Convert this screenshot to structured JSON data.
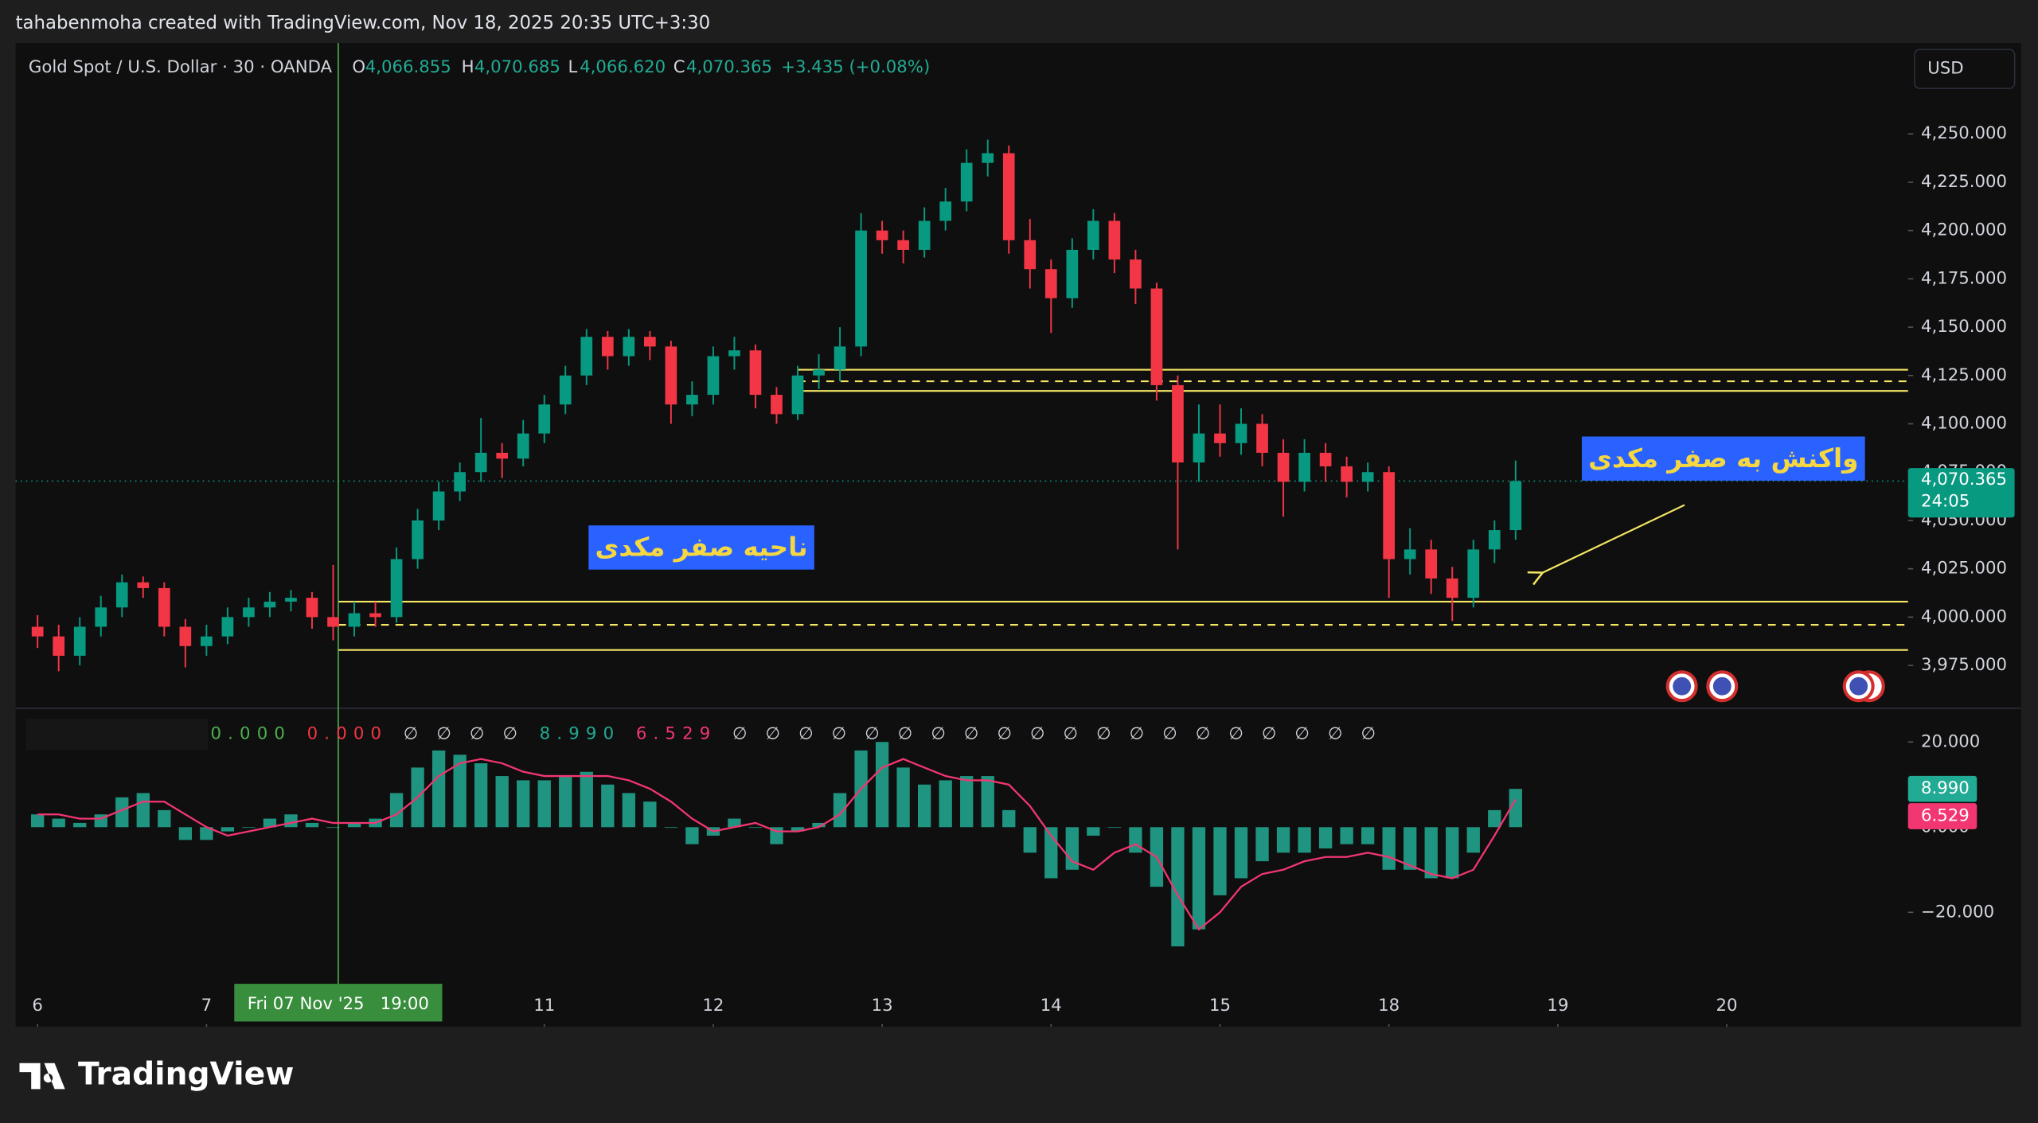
{
  "page": {
    "attribution": "tahabenmoha created with TradingView.com, Nov 18, 2025 20:35 UTC+3:30",
    "brand": "TradingView",
    "currency": "USD"
  },
  "chart_data": [
    {
      "type": "candlestick",
      "title": "Gold Spot / U.S. Dollar · 30 · OANDA",
      "quote": {
        "labels": [
          "O",
          "H",
          "L",
          "C"
        ],
        "values": [
          4066.855,
          4070.685,
          4066.62,
          4070.365
        ],
        "value_labels": [
          "4,066.855",
          "4,070.685",
          "4,066.620",
          "4,070.365"
        ],
        "change": "+3.435 (+0.08%)"
      },
      "up_color": "#089981",
      "down_color": "#f23645",
      "x": [
        0,
        0.125,
        0.25,
        0.375,
        0.5,
        0.625,
        0.75,
        0.875,
        1,
        1.125,
        1.25,
        1.375,
        1.5,
        1.625,
        1.75,
        1.875,
        2,
        2.125,
        2.25,
        2.375,
        2.5,
        2.625,
        2.75,
        2.875,
        3,
        3.125,
        3.25,
        3.375,
        3.5,
        3.625,
        3.75,
        3.875,
        4,
        4.125,
        4.25,
        4.375,
        4.5,
        4.625,
        4.75,
        4.875,
        5,
        5.125,
        5.25,
        5.375,
        5.5,
        5.625,
        5.75,
        5.875,
        6,
        6.125,
        6.25,
        6.375,
        6.5,
        6.625,
        6.75,
        6.875,
        7,
        7.125,
        7.25,
        7.375,
        7.5,
        7.625,
        7.75,
        7.875,
        8,
        8.125,
        8.25,
        8.375,
        8.5,
        8.625,
        8.75
      ],
      "open": [
        3995,
        3990,
        3980,
        3995,
        4005,
        4018,
        4015,
        3995,
        3985,
        3990,
        4000,
        4005,
        4008,
        4010,
        4000,
        3995,
        4002,
        4000,
        4030,
        4050,
        4065,
        4075,
        4085,
        4082,
        4095,
        4110,
        4125,
        4145,
        4135,
        4145,
        4140,
        4110,
        4115,
        4135,
        4138,
        4115,
        4105,
        4125,
        4128,
        4140,
        4200,
        4195,
        4190,
        4205,
        4215,
        4235,
        4240,
        4195,
        4180,
        4165,
        4190,
        4205,
        4185,
        4170,
        4120,
        4080,
        4095,
        4090,
        4100,
        4085,
        4070,
        4085,
        4078,
        4070,
        4075,
        4030,
        4035,
        4020,
        4010,
        4035,
        4045
      ],
      "high": [
        4001,
        3996,
        4000,
        4011,
        4022,
        4021,
        4018,
        3999,
        3996,
        4005,
        4010,
        4013,
        4014,
        4013,
        4027,
        4008,
        4008,
        4036,
        4056,
        4070,
        4080,
        4103,
        4090,
        4102,
        4115,
        4130,
        4149,
        4148,
        4149,
        4148,
        4143,
        4122,
        4140,
        4145,
        4141,
        4119,
        4130,
        4136,
        4150,
        4209,
        4205,
        4200,
        4212,
        4222,
        4242,
        4247,
        4244,
        4206,
        4185,
        4196,
        4211,
        4209,
        4190,
        4173,
        4125,
        4110,
        4110,
        4108,
        4105,
        4092,
        4092,
        4090,
        4083,
        4080,
        4078,
        4046,
        4040,
        4026,
        4040,
        4050,
        4081
      ],
      "low": [
        3984,
        3972,
        3975,
        3990,
        4000,
        4010,
        3990,
        3974,
        3980,
        3986,
        3995,
        4000,
        4003,
        3994,
        3988,
        3990,
        3995,
        3997,
        4025,
        4045,
        4060,
        4070,
        4072,
        4078,
        4090,
        4105,
        4120,
        4128,
        4130,
        4133,
        4100,
        4104,
        4110,
        4128,
        4108,
        4100,
        4102,
        4118,
        4122,
        4135,
        4188,
        4183,
        4186,
        4200,
        4210,
        4228,
        4188,
        4170,
        4147,
        4160,
        4185,
        4178,
        4162,
        4112,
        4035,
        4070,
        4083,
        4084,
        4078,
        4052,
        4065,
        4070,
        4062,
        4065,
        4010,
        4022,
        4012,
        3998,
        4005,
        4028,
        4040
      ],
      "close": [
        3990,
        3980,
        3995,
        4005,
        4018,
        4015,
        3995,
        3985,
        3990,
        4000,
        4005,
        4008,
        4010,
        4000,
        3995,
        4002,
        4000,
        4030,
        4050,
        4065,
        4075,
        4085,
        4082,
        4095,
        4110,
        4125,
        4145,
        4135,
        4145,
        4140,
        4110,
        4115,
        4135,
        4138,
        4115,
        4105,
        4125,
        4128,
        4140,
        4200,
        4195,
        4190,
        4205,
        4215,
        4235,
        4240,
        4195,
        4180,
        4165,
        4190,
        4205,
        4185,
        4170,
        4120,
        4080,
        4095,
        4090,
        4100,
        4085,
        4070,
        4085,
        4078,
        4070,
        4075,
        4030,
        4035,
        4020,
        4010,
        4035,
        4045,
        4070.365
      ],
      "xlim": [
        -0.13,
        11.05
      ],
      "xticks": [
        {
          "value": 0,
          "label": "6"
        },
        {
          "value": 1,
          "label": "7"
        },
        {
          "value": 3,
          "label": "11"
        },
        {
          "value": 4,
          "label": "12"
        },
        {
          "value": 5,
          "label": "13"
        },
        {
          "value": 6,
          "label": "14"
        },
        {
          "value": 7,
          "label": "15"
        },
        {
          "value": 8,
          "label": "18"
        },
        {
          "value": 9,
          "label": "19"
        },
        {
          "value": 10,
          "label": "20"
        }
      ],
      "ylim": [
        3952.8,
        4297
      ],
      "yticks": [
        {
          "value": 4250,
          "label": "4,250.000"
        },
        {
          "value": 4225,
          "label": "4,225.000"
        },
        {
          "value": 4200,
          "label": "4,200.000"
        },
        {
          "value": 4175,
          "label": "4,175.000"
        },
        {
          "value": 4150,
          "label": "4,150.000"
        },
        {
          "value": 4125,
          "label": "4,125.000"
        },
        {
          "value": 4100,
          "label": "4,100.000"
        },
        {
          "value": 4075,
          "label": "4,075.000"
        },
        {
          "value": 4050,
          "label": "4,050.000"
        },
        {
          "value": 4025,
          "label": "4,025.000"
        },
        {
          "value": 4000,
          "label": "4,000.000"
        },
        {
          "value": 3975,
          "label": "3,975.000"
        }
      ],
      "grid": false,
      "level_color": "#f5e663",
      "levels": [
        {
          "value": 4128,
          "style": "solid",
          "start": 4.5
        },
        {
          "value": 4122,
          "style": "dashed",
          "start": 4.5
        },
        {
          "value": 4117,
          "style": "solid",
          "start": 4.5
        },
        {
          "value": 4008,
          "style": "solid",
          "start": 1.78
        },
        {
          "value": 3996,
          "style": "dashed",
          "start": 1.78
        },
        {
          "value": 3983,
          "style": "solid",
          "start": 1.78
        }
      ],
      "current_price": {
        "value": 4070.365,
        "label": "4,070.365",
        "countdown": "24:05",
        "color": "#089981"
      },
      "crosshair": {
        "x": 1.78,
        "label": "Fri 07 Nov '25   19:00",
        "color": "#4caf50"
      },
      "annotation_style": {
        "text_color": "#f5d742",
        "box_color": "#2962ff"
      },
      "annotations": [
        {
          "text": "ناحیه صفر مکدی",
          "x": 3.93,
          "y": 4036
        },
        {
          "text": "واکنش به صفر مکدی",
          "x": 9.98,
          "y": 4082,
          "arrow": {
            "from": [
              9.75,
              4058
            ],
            "to": [
              8.91,
              4023
            ]
          }
        }
      ]
    },
    {
      "type": "macd",
      "legend": [
        {
          "text": "0.000",
          "color": "#4caf50"
        },
        {
          "text": "0.000",
          "color": "#f23645"
        },
        {
          "text": "∅ ∅ ∅ ∅",
          "color": "#d1d4dc"
        },
        {
          "text": "8.990",
          "color": "#22ab94"
        },
        {
          "text": "6.529",
          "color": "#f23671"
        },
        {
          "text": "∅ ∅ ∅ ∅ ∅ ∅ ∅ ∅ ∅ ∅ ∅ ∅ ∅ ∅ ∅ ∅ ∅ ∅ ∅ ∅",
          "color": "#d1d4dc"
        }
      ],
      "series": [
        {
          "type": "bar",
          "color": "#22ab94",
          "values": [
            3,
            2,
            1,
            3,
            7,
            8,
            4,
            -3,
            -3,
            -1,
            0,
            2,
            3,
            1,
            0,
            1,
            2,
            8,
            14,
            18,
            17,
            15,
            12,
            11,
            11,
            12,
            13,
            10,
            8,
            6,
            0,
            -4,
            -2,
            2,
            0,
            -4,
            -1,
            1,
            8,
            18,
            20,
            14,
            10,
            11,
            12,
            12,
            4,
            -6,
            -12,
            -10,
            -2,
            0,
            -6,
            -14,
            -28,
            -24,
            -16,
            -12,
            -8,
            -6,
            -6,
            -5,
            -4,
            -4,
            -10,
            -10,
            -12,
            -12,
            -6,
            4,
            8.99
          ],
          "last_label": "8.990"
        },
        {
          "type": "line",
          "color": "#f23671",
          "values": [
            3,
            3,
            2,
            2,
            4,
            6,
            6,
            3,
            0,
            -2,
            -1,
            0,
            1,
            2,
            1,
            1,
            1,
            3,
            7,
            12,
            15,
            16,
            15,
            13,
            12,
            12,
            12,
            12,
            11,
            9,
            6,
            2,
            -1,
            0,
            1,
            -1,
            -1,
            0,
            3,
            9,
            14,
            16,
            14,
            12,
            11,
            11,
            10,
            5,
            -2,
            -8,
            -10,
            -6,
            -4,
            -7,
            -16,
            -24,
            -20,
            -14,
            -11,
            -10,
            -8,
            -7,
            -7,
            -6,
            -7,
            -9,
            -11,
            -12,
            -10,
            -2,
            6.529
          ],
          "last_label": "6.529"
        }
      ],
      "ylim": [
        -37.7,
        27.9
      ],
      "yticks": [
        {
          "value": 20,
          "label": "20.000"
        },
        {
          "value": 0,
          "label": "0.000"
        },
        {
          "value": -20,
          "label": "−20.000"
        }
      ]
    }
  ]
}
